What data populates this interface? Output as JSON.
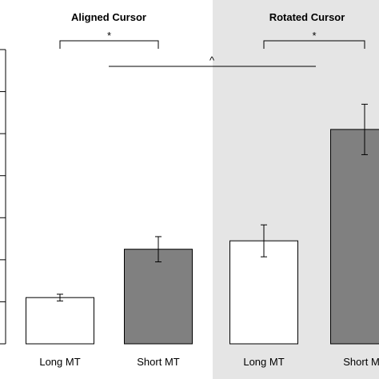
{
  "chart_data": {
    "type": "bar",
    "panels": [
      {
        "title": "Aligned Cursor",
        "background": "#ffffff",
        "categories": [
          "Long MT",
          "Short MT"
        ],
        "values": [
          1.1,
          2.25
        ],
        "errors": [
          0.08,
          0.3
        ],
        "bar_colors": [
          "#ffffff",
          "#808080"
        ]
      },
      {
        "title": "Rotated Cursor",
        "background": "#e5e5e5",
        "categories": [
          "Long MT",
          "Short MT"
        ],
        "values": [
          2.45,
          5.1
        ],
        "errors": [
          0.38,
          0.6
        ],
        "bar_colors": [
          "#ffffff",
          "#808080"
        ]
      }
    ],
    "ylim": [
      0,
      7
    ],
    "yticks": [
      0,
      1,
      2,
      3,
      4,
      5,
      6,
      7
    ],
    "show_tick_labels_y": false,
    "grid": false,
    "annotations": [
      {
        "text": "*",
        "type": "bracket",
        "from": "Aligned Cursor / Long MT",
        "to": "Aligned Cursor / Short MT"
      },
      {
        "text": "*",
        "type": "bracket",
        "from": "Rotated Cursor / Long MT",
        "to": "Rotated Cursor / Short MT"
      },
      {
        "text": "^",
        "type": "line",
        "from": "Aligned Cursor",
        "to": "Rotated Cursor"
      }
    ]
  }
}
